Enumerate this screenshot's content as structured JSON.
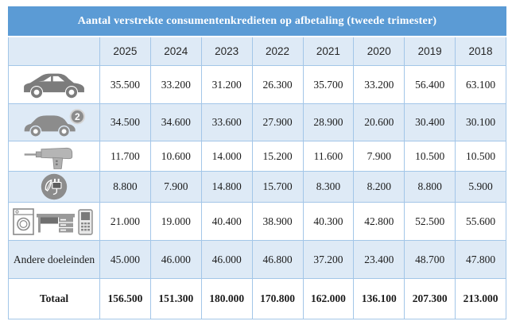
{
  "table": {
    "title": "Aantal verstrekte consumentenkredieten op afbetaling (tweede trimester)",
    "years": [
      "2025",
      "2024",
      "2023",
      "2022",
      "2021",
      "2020",
      "2019",
      "2018"
    ],
    "rows": [
      {
        "icon": "new-car-icon",
        "label": "",
        "values": [
          "35.500",
          "33.200",
          "31.200",
          "26.300",
          "35.700",
          "33.200",
          "56.400",
          "63.100"
        ]
      },
      {
        "icon": "second-hand-car-icon",
        "label": "",
        "badge": "2",
        "values": [
          "34.500",
          "34.600",
          "33.600",
          "27.900",
          "28.900",
          "20.600",
          "30.400",
          "30.100"
        ]
      },
      {
        "icon": "drill-icon",
        "label": "",
        "values": [
          "11.700",
          "10.600",
          "14.000",
          "15.200",
          "11.600",
          "7.900",
          "10.500",
          "10.500"
        ]
      },
      {
        "icon": "green-energy-plug-icon",
        "label": "",
        "values": [
          "8.800",
          "7.900",
          "14.800",
          "15.700",
          "8.300",
          "8.200",
          "8.800",
          "5.900"
        ]
      },
      {
        "icon": "appliances-furniture-phone-icon",
        "label": "",
        "values": [
          "21.000",
          "19.000",
          "40.400",
          "38.900",
          "40.300",
          "42.800",
          "52.500",
          "55.600"
        ]
      },
      {
        "icon": null,
        "label": "Andere doeleinden",
        "values": [
          "45.000",
          "46.000",
          "46.000",
          "46.800",
          "37.200",
          "23.400",
          "48.700",
          "47.800"
        ]
      },
      {
        "icon": null,
        "label": "Totaal",
        "bold": true,
        "values": [
          "156.500",
          "151.300",
          "180.000",
          "170.800",
          "162.000",
          "136.100",
          "207.300",
          "213.000"
        ]
      }
    ]
  },
  "colors": {
    "title_bar": "#5B9BD5",
    "band_row": "#DEEAF6",
    "border": "#A3C6E8",
    "text": "#1C1C1C",
    "icon_gray": "#8A8A8A"
  },
  "chart_data": {
    "type": "table",
    "title": "Aantal verstrekte consumentenkredieten op afbetaling (tweede trimester)",
    "columns": [
      "2025",
      "2024",
      "2023",
      "2022",
      "2021",
      "2020",
      "2019",
      "2018"
    ],
    "series": [
      {
        "name": "new-car-icon-row",
        "values": [
          35500,
          33200,
          31200,
          26300,
          35700,
          33200,
          56400,
          63100
        ]
      },
      {
        "name": "second-hand-car-icon-row",
        "values": [
          34500,
          34600,
          33600,
          27900,
          28900,
          20600,
          30400,
          30100
        ]
      },
      {
        "name": "drill-icon-row",
        "values": [
          11700,
          10600,
          14000,
          15200,
          11600,
          7900,
          10500,
          10500
        ]
      },
      {
        "name": "green-energy-plug-icon-row",
        "values": [
          8800,
          7900,
          14800,
          15700,
          8300,
          8200,
          8800,
          5900
        ]
      },
      {
        "name": "appliances-furniture-phone-icon-row",
        "values": [
          21000,
          19000,
          40400,
          38900,
          40300,
          42800,
          52500,
          55600
        ]
      },
      {
        "name": "Andere doeleinden",
        "values": [
          45000,
          46000,
          46000,
          46800,
          37200,
          23400,
          48700,
          47800
        ]
      },
      {
        "name": "Totaal",
        "values": [
          156500,
          151300,
          180000,
          170800,
          162000,
          136100,
          207300,
          213000
        ]
      }
    ]
  }
}
